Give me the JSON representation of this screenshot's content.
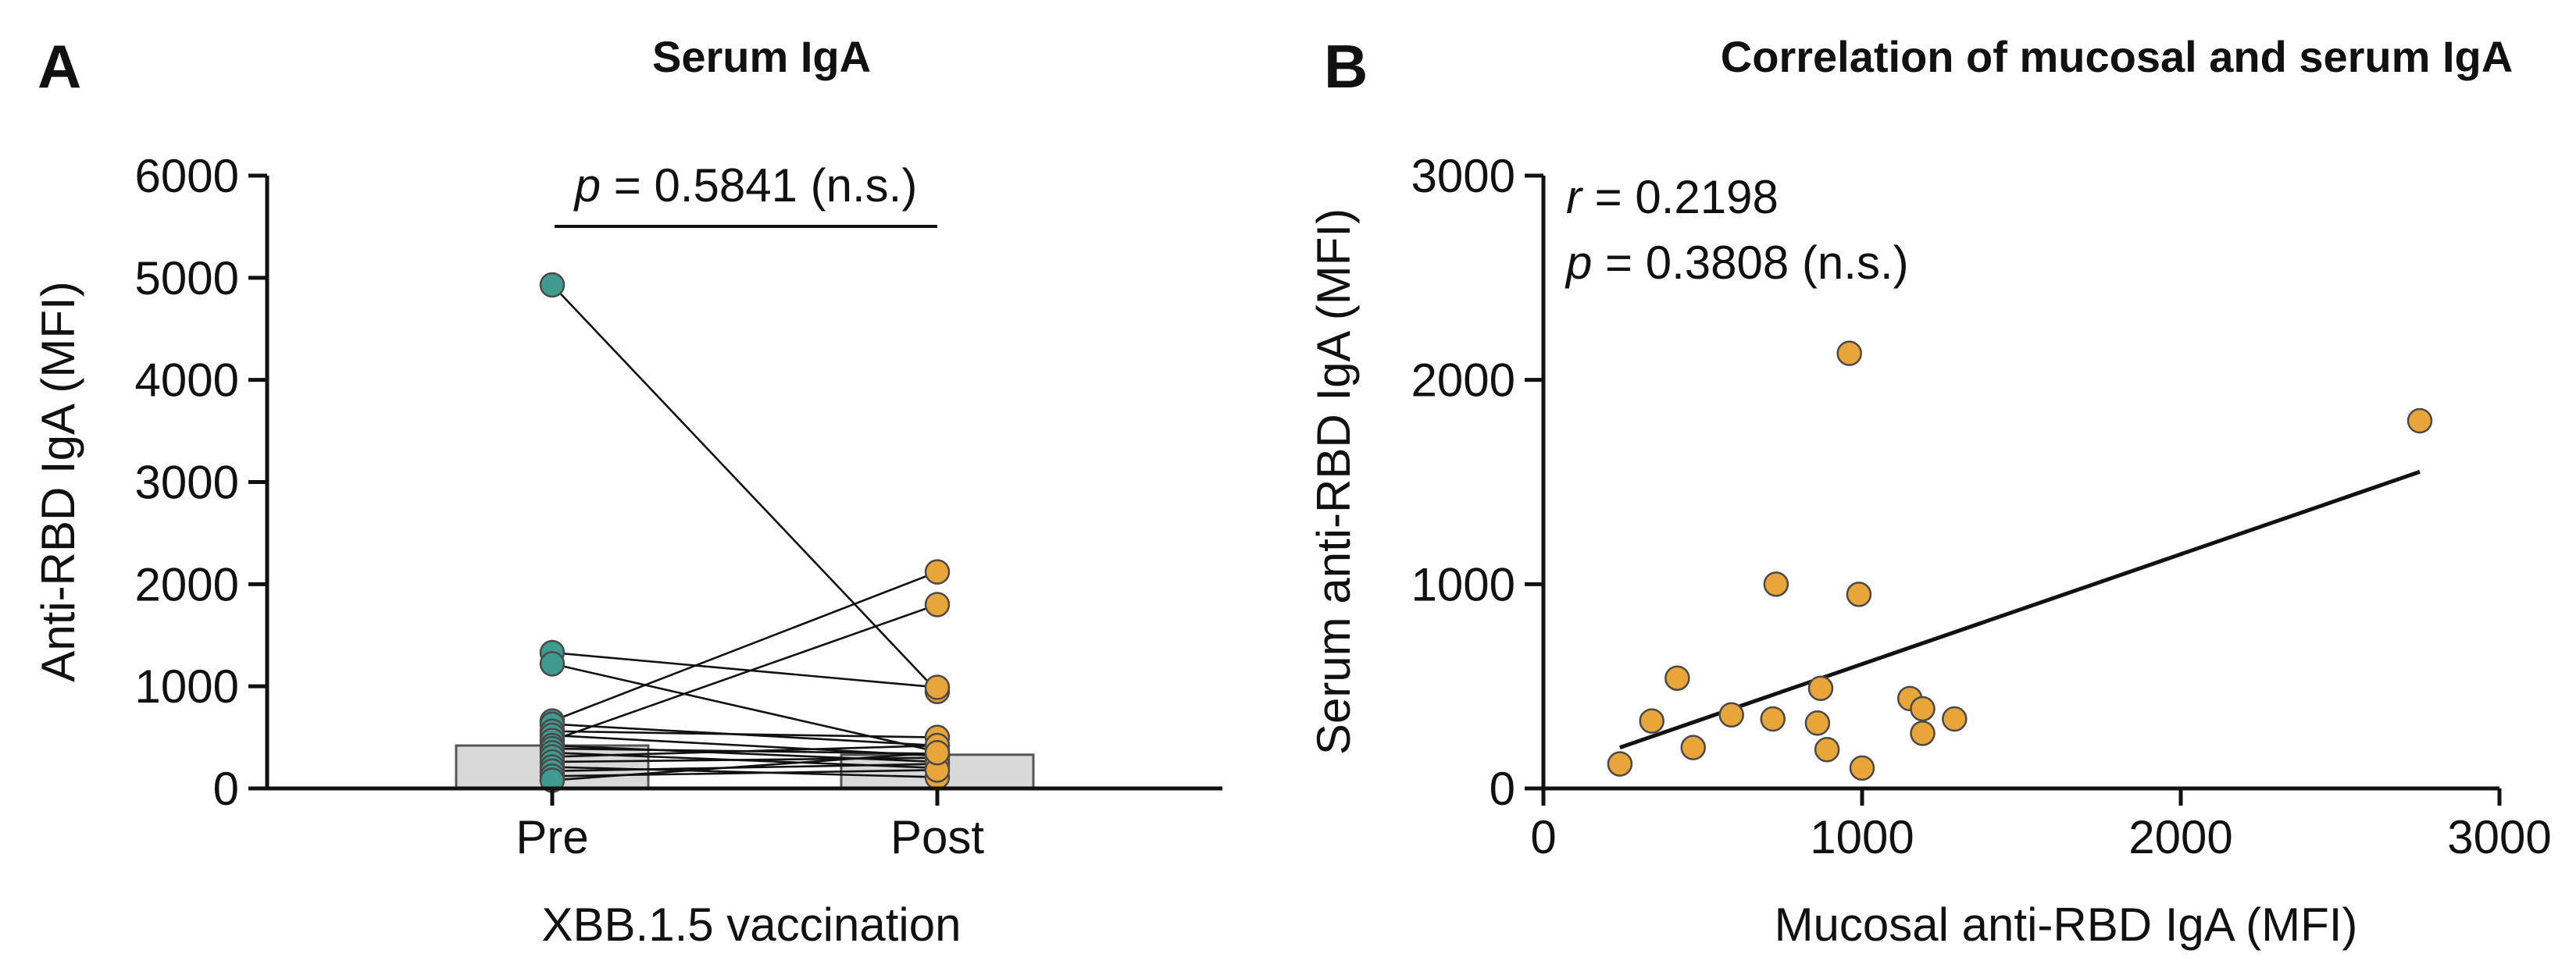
{
  "colors": {
    "pre_fill": "#3f9a8f",
    "post_fill": "#e8a53a",
    "point_stroke": "#4a4a4a",
    "bar_fill": "#d9d9d9",
    "bar_stroke": "#555555",
    "line": "#111111"
  },
  "chart_data": [
    {
      "panel": "A",
      "type": "bar",
      "title": "Serum IgA",
      "xlabel": "XBB.1.5 vaccination",
      "ylabel": "Anti-RBD IgA (MFI)",
      "ylim": [
        0,
        6000
      ],
      "yticks": [
        0,
        1000,
        2000,
        3000,
        4000,
        5000,
        6000
      ],
      "categories": [
        "Pre",
        "Post"
      ],
      "bar_values": [
        420,
        330
      ],
      "paired_points": [
        {
          "pre": 4930,
          "post": 950
        },
        {
          "pre": 1330,
          "post": 990
        },
        {
          "pre": 1220,
          "post": 360
        },
        {
          "pre": 660,
          "post": 2120
        },
        {
          "pre": 630,
          "post": 420
        },
        {
          "pre": 560,
          "post": 500
        },
        {
          "pre": 520,
          "post": 320
        },
        {
          "pre": 470,
          "post": 1800
        },
        {
          "pre": 420,
          "post": 260
        },
        {
          "pre": 390,
          "post": 340
        },
        {
          "pre": 350,
          "post": 200
        },
        {
          "pre": 310,
          "post": 420
        },
        {
          "pre": 260,
          "post": 300
        },
        {
          "pre": 210,
          "post": 110
        },
        {
          "pre": 170,
          "post": 240
        },
        {
          "pre": 120,
          "post": 180
        },
        {
          "pre": 80,
          "post": 350
        }
      ],
      "annotation": {
        "p_symbol": "p",
        "p_text": " = 0.5841 (n.s.)"
      }
    },
    {
      "panel": "B",
      "type": "scatter",
      "title": "Correlation of mucosal and serum IgA",
      "xlabel": "Mucosal anti-RBD IgA (MFI)",
      "ylabel": "Serum anti-RBD IgA (MFI)",
      "xlim": [
        0,
        3000
      ],
      "ylim": [
        0,
        3000
      ],
      "xticks": [
        0,
        1000,
        2000,
        3000
      ],
      "yticks": [
        0,
        1000,
        2000,
        3000
      ],
      "points": [
        {
          "x": 240,
          "y": 120
        },
        {
          "x": 340,
          "y": 330
        },
        {
          "x": 420,
          "y": 540
        },
        {
          "x": 470,
          "y": 200
        },
        {
          "x": 590,
          "y": 360
        },
        {
          "x": 720,
          "y": 340
        },
        {
          "x": 730,
          "y": 1000
        },
        {
          "x": 860,
          "y": 320
        },
        {
          "x": 870,
          "y": 490
        },
        {
          "x": 890,
          "y": 190
        },
        {
          "x": 960,
          "y": 2130
        },
        {
          "x": 990,
          "y": 950
        },
        {
          "x": 1000,
          "y": 100
        },
        {
          "x": 1150,
          "y": 440
        },
        {
          "x": 1190,
          "y": 390
        },
        {
          "x": 1190,
          "y": 270
        },
        {
          "x": 1290,
          "y": 340
        },
        {
          "x": 2750,
          "y": 1800
        }
      ],
      "fit_line": {
        "x": [
          240,
          2750
        ],
        "y": [
          200,
          1550
        ]
      },
      "annotation": {
        "r_symbol": "r",
        "r_text": " = 0.2198",
        "p_symbol": "p",
        "p_text": " = 0.3808 (n.s.)"
      }
    }
  ],
  "labels": {
    "panel_a": "A",
    "panel_b": "B"
  }
}
